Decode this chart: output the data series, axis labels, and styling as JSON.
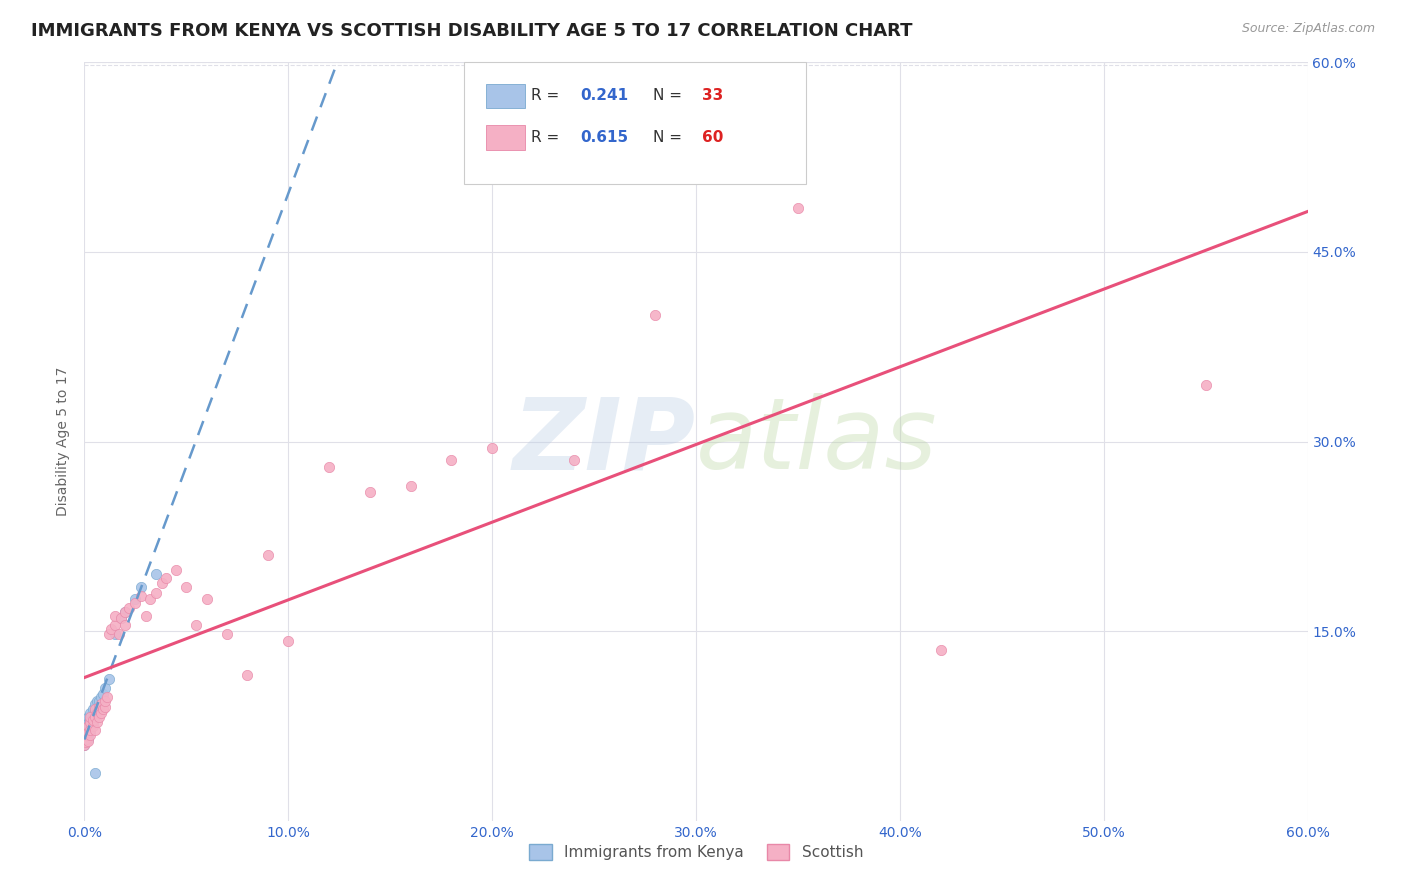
{
  "title": "IMMIGRANTS FROM KENYA VS SCOTTISH DISABILITY AGE 5 TO 17 CORRELATION CHART",
  "source": "Source: ZipAtlas.com",
  "ylabel": "Disability Age 5 to 17",
  "xlim": [
    0.0,
    0.6
  ],
  "ylim": [
    0.0,
    0.6
  ],
  "xtick_labels": [
    "0.0%",
    "10.0%",
    "20.0%",
    "30.0%",
    "40.0%",
    "50.0%",
    "60.0%"
  ],
  "xtick_vals": [
    0.0,
    0.1,
    0.2,
    0.3,
    0.4,
    0.5,
    0.6
  ],
  "ytick_labels_right": [
    "60.0%",
    "45.0%",
    "30.0%",
    "15.0%"
  ],
  "ytick_vals_right": [
    0.6,
    0.45,
    0.3,
    0.15
  ],
  "background_color": "#ffffff",
  "grid_color": "#e0e0e8",
  "watermark_zip": "ZIP",
  "watermark_atlas": "atlas",
  "watermark_color_zip": "#b8cce4",
  "watermark_color_atlas": "#c8d8b0",
  "title_color": "#222222",
  "title_fontsize": 13,
  "axis_label_color": "#666666",
  "tick_color": "#3366cc",
  "kenya_dot_color": "#a8c4e8",
  "kenya_dot_edge": "#7aaad0",
  "kenya_line_color": "#6699cc",
  "kenya_dot_size": 55,
  "scottish_dot_color": "#f5b0c5",
  "scottish_dot_edge": "#e888a8",
  "scottish_line_color": "#e8507a",
  "scottish_dot_size": 55,
  "kenya_R": 0.241,
  "kenya_N": 33,
  "scottish_R": 0.615,
  "scottish_N": 60,
  "R_color": "#3366cc",
  "N_color": "#dd2222",
  "kenya_x": [
    0.0,
    0.001,
    0.001,
    0.001,
    0.001,
    0.002,
    0.002,
    0.002,
    0.002,
    0.002,
    0.003,
    0.003,
    0.003,
    0.003,
    0.004,
    0.004,
    0.004,
    0.005,
    0.005,
    0.006,
    0.006,
    0.007,
    0.008,
    0.009,
    0.01,
    0.012,
    0.015,
    0.018,
    0.02,
    0.025,
    0.028,
    0.035,
    0.005
  ],
  "kenya_y": [
    0.06,
    0.063,
    0.068,
    0.07,
    0.075,
    0.065,
    0.072,
    0.078,
    0.08,
    0.082,
    0.07,
    0.075,
    0.08,
    0.085,
    0.078,
    0.082,
    0.088,
    0.085,
    0.092,
    0.088,
    0.095,
    0.095,
    0.098,
    0.1,
    0.105,
    0.112,
    0.148,
    0.16,
    0.165,
    0.175,
    0.185,
    0.195,
    0.038
  ],
  "scottish_x": [
    0.0,
    0.001,
    0.001,
    0.001,
    0.002,
    0.002,
    0.002,
    0.003,
    0.003,
    0.003,
    0.003,
    0.004,
    0.004,
    0.005,
    0.005,
    0.005,
    0.006,
    0.006,
    0.007,
    0.007,
    0.008,
    0.008,
    0.009,
    0.01,
    0.01,
    0.011,
    0.012,
    0.013,
    0.015,
    0.015,
    0.017,
    0.018,
    0.02,
    0.02,
    0.022,
    0.025,
    0.028,
    0.03,
    0.032,
    0.035,
    0.038,
    0.04,
    0.045,
    0.05,
    0.055,
    0.06,
    0.07,
    0.08,
    0.09,
    0.1,
    0.12,
    0.14,
    0.16,
    0.18,
    0.2,
    0.24,
    0.28,
    0.35,
    0.42,
    0.55
  ],
  "scottish_y": [
    0.06,
    0.062,
    0.065,
    0.068,
    0.063,
    0.07,
    0.075,
    0.068,
    0.072,
    0.078,
    0.082,
    0.075,
    0.08,
    0.072,
    0.082,
    0.088,
    0.078,
    0.085,
    0.082,
    0.09,
    0.085,
    0.092,
    0.088,
    0.09,
    0.095,
    0.098,
    0.148,
    0.152,
    0.155,
    0.162,
    0.148,
    0.16,
    0.155,
    0.165,
    0.168,
    0.172,
    0.178,
    0.162,
    0.175,
    0.18,
    0.188,
    0.192,
    0.198,
    0.185,
    0.155,
    0.175,
    0.148,
    0.115,
    0.21,
    0.142,
    0.28,
    0.26,
    0.265,
    0.285,
    0.295,
    0.285,
    0.4,
    0.485,
    0.135,
    0.345
  ],
  "legend_R_label1": "R = 0.241",
  "legend_N_label1": "N = 33",
  "legend_R_label2": "R = 0.615",
  "legend_N_label2": "N = 60"
}
